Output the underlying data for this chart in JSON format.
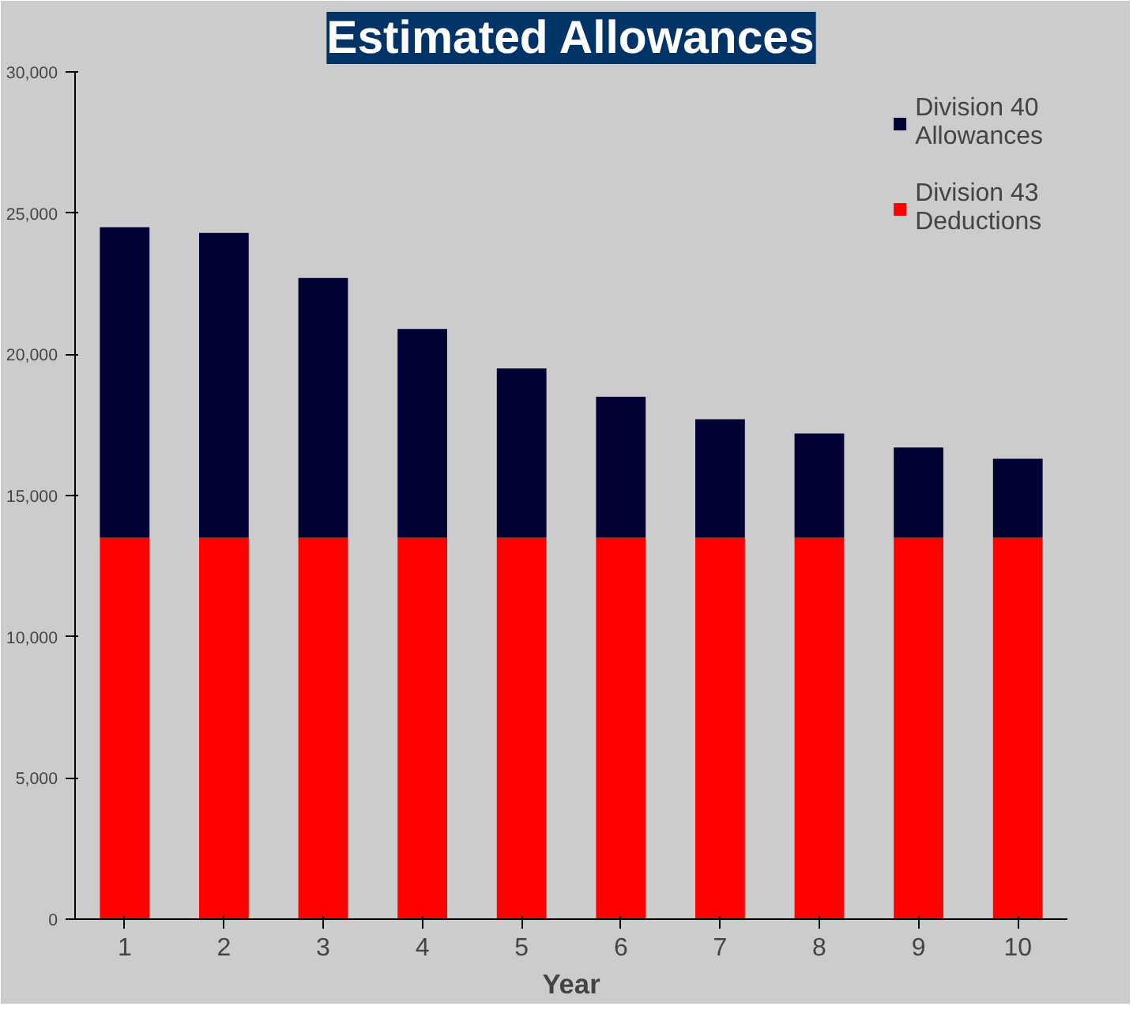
{
  "chart_data": {
    "type": "bar",
    "title": "Estimated Allowances",
    "xlabel": "Year",
    "categories": [
      "1",
      "2",
      "3",
      "4",
      "5",
      "6",
      "7",
      "8",
      "9",
      "10"
    ],
    "stacked": true,
    "series": [
      {
        "name": "Division 43\nDeductions",
        "color": "#ff0000",
        "values": [
          13500,
          13500,
          13500,
          13500,
          13500,
          13500,
          13500,
          13500,
          13500,
          13500
        ]
      },
      {
        "name": "Division 40\nAllowances",
        "color": "#000033",
        "values": [
          11000,
          10800,
          9200,
          7400,
          6000,
          5000,
          4200,
          3700,
          3200,
          2800
        ]
      }
    ],
    "ylim": [
      0,
      30000
    ],
    "yticks": [
      {
        "value": 0,
        "label": "0"
      },
      {
        "value": 5000,
        "label": "5,000"
      },
      {
        "value": 10000,
        "label": "10,000"
      },
      {
        "value": 15000,
        "label": "15,000"
      },
      {
        "value": 20000,
        "label": "20,000"
      },
      {
        "value": 25000,
        "label": "25,000"
      },
      {
        "value": 30000,
        "label": "30,000"
      }
    ],
    "grid": false,
    "legend": "top right"
  }
}
